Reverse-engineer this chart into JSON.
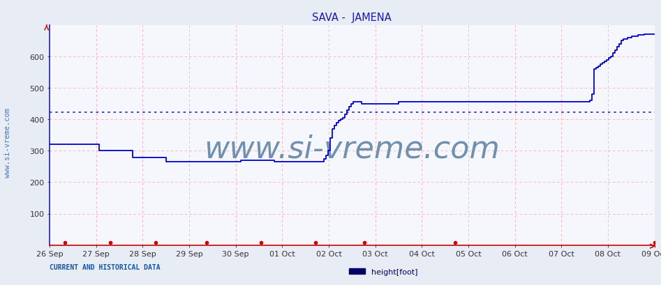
{
  "title": "SAVA -  JAMENA",
  "title_color": "#1a1aaa",
  "bg_color": "#e8ecf5",
  "plot_bg_color": "#f5f7fc",
  "ylim": [
    0,
    700
  ],
  "yticks": [
    100,
    200,
    300,
    400,
    500,
    600
  ],
  "line_color": "#0000cc",
  "hline_value": 422,
  "hline_color": "#2222aa",
  "grid_color": "#ffaaaa",
  "watermark_text": "www.si-vreme.com",
  "watermark_color": "#7090b0",
  "watermark_fontsize": 32,
  "left_label": "www.si-vreme.com",
  "left_label_color": "#4477bb",
  "bottom_left_text": "CURRENT AND HISTORICAL DATA",
  "bottom_left_color": "#1155aa",
  "legend_label": "height[foot]",
  "legend_color": "#000066",
  "x_labels": [
    "26 Sep",
    "27 Sep",
    "28 Sep",
    "29 Sep",
    "30 Sep",
    "01 Oct",
    "02 Oct",
    "03 Oct",
    "04 Oct",
    "05 Oct",
    "06 Oct",
    "07 Oct",
    "08 Oct",
    "09 Oct"
  ],
  "x_ticks_count": 14,
  "series": [
    320,
    320,
    320,
    320,
    320,
    320,
    320,
    320,
    320,
    320,
    320,
    320,
    320,
    320,
    320,
    320,
    320,
    320,
    320,
    320,
    320,
    320,
    320,
    320,
    300,
    300,
    300,
    300,
    300,
    300,
    300,
    300,
    300,
    300,
    300,
    300,
    300,
    300,
    300,
    300,
    278,
    278,
    278,
    278,
    278,
    278,
    278,
    278,
    278,
    278,
    278,
    278,
    278,
    278,
    278,
    278,
    265,
    265,
    265,
    265,
    265,
    265,
    265,
    265,
    265,
    265,
    265,
    265,
    265,
    265,
    265,
    265,
    265,
    265,
    265,
    265,
    265,
    265,
    265,
    265,
    265,
    265,
    265,
    265,
    265,
    265,
    265,
    265,
    265,
    265,
    265,
    265,
    270,
    270,
    270,
    270,
    270,
    270,
    270,
    270,
    270,
    270,
    270,
    270,
    270,
    270,
    270,
    270,
    265,
    265,
    265,
    265,
    265,
    265,
    265,
    265,
    265,
    265,
    265,
    265,
    265,
    265,
    265,
    265,
    265,
    265,
    265,
    265,
    265,
    265,
    265,
    265,
    275,
    285,
    300,
    340,
    370,
    380,
    390,
    395,
    400,
    405,
    415,
    430,
    440,
    450,
    455,
    455,
    455,
    455,
    450,
    450,
    450,
    450,
    450,
    450,
    450,
    450,
    450,
    450,
    450,
    450,
    450,
    450,
    450,
    450,
    450,
    450,
    455,
    455,
    455,
    455,
    455,
    455,
    455,
    455,
    455,
    455,
    455,
    455,
    455,
    455,
    455,
    455,
    455,
    455,
    455,
    455,
    455,
    455,
    455,
    455,
    455,
    455,
    455,
    455,
    455,
    455,
    455,
    455,
    455,
    455,
    455,
    455,
    455,
    455,
    455,
    455,
    455,
    455,
    455,
    455,
    455,
    455,
    455,
    455,
    455,
    455,
    455,
    455,
    455,
    455,
    455,
    455,
    455,
    455,
    455,
    455,
    455,
    455,
    455,
    455,
    455,
    455,
    455,
    455,
    455,
    455,
    455,
    455,
    455,
    455,
    455,
    455,
    455,
    455,
    455,
    455,
    455,
    455,
    455,
    455,
    455,
    455,
    455,
    455,
    455,
    455,
    455,
    455,
    460,
    480,
    560,
    565,
    570,
    575,
    580,
    585,
    590,
    595,
    600,
    610,
    620,
    630,
    640,
    650,
    655,
    655,
    660,
    660,
    665,
    665,
    665,
    668,
    668,
    668,
    670,
    672,
    672,
    672,
    672,
    672
  ],
  "red_dot_x_fracs": [
    0.025,
    0.1,
    0.175,
    0.26,
    0.35,
    0.44,
    0.52,
    0.67,
    1.0
  ]
}
